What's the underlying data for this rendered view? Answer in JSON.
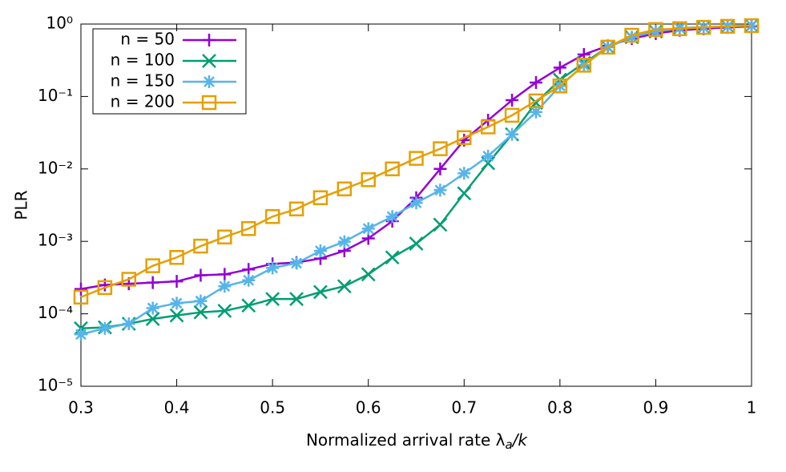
{
  "chart_data": {
    "type": "line",
    "ylabel": "PLR",
    "xlabel": {
      "text": "Normalized arrival rate λ",
      "subscript": "a",
      "suffix": "/k"
    },
    "x": [
      0.3,
      0.325,
      0.35,
      0.375,
      0.4,
      0.425,
      0.45,
      0.475,
      0.5,
      0.525,
      0.55,
      0.575,
      0.6,
      0.625,
      0.65,
      0.675,
      0.7,
      0.725,
      0.75,
      0.775,
      0.8,
      0.825,
      0.85,
      0.875,
      0.9,
      0.925,
      0.95,
      0.975,
      1.0
    ],
    "series": [
      {
        "name": "n = 50",
        "color": "#9400d3",
        "marker": "plus",
        "values": [
          0.00022,
          0.00025,
          0.00026,
          0.00027,
          0.00028,
          0.00034,
          0.00035,
          0.00041,
          0.00049,
          0.00051,
          0.00058,
          0.00074,
          0.0011,
          0.0019,
          0.004,
          0.01,
          0.025,
          0.047,
          0.089,
          0.156,
          0.25,
          0.38,
          0.5,
          0.63,
          0.74,
          0.82,
          0.86,
          0.9,
          0.93
        ]
      },
      {
        "name": "n = 100",
        "color": "#009e73",
        "marker": "cross",
        "values": [
          6.3e-05,
          6.5e-05,
          7.3e-05,
          8.5e-05,
          9.5e-05,
          0.000105,
          0.00011,
          0.00013,
          0.00016,
          0.00016,
          0.0002,
          0.00024,
          0.00035,
          0.0006,
          0.00093,
          0.0017,
          0.0046,
          0.012,
          0.03,
          0.082,
          0.17,
          0.29,
          0.48,
          0.66,
          0.79,
          0.88,
          0.9,
          0.93,
          0.95
        ]
      },
      {
        "name": "n = 150",
        "color": "#56b4e9",
        "marker": "asterisk",
        "values": [
          5.2e-05,
          6.3e-05,
          7.3e-05,
          0.00012,
          0.00014,
          0.00015,
          0.00024,
          0.00029,
          0.00043,
          0.0005,
          0.00074,
          0.00099,
          0.0015,
          0.0022,
          0.0034,
          0.0051,
          0.0087,
          0.015,
          0.03,
          0.061,
          0.14,
          0.27,
          0.48,
          0.66,
          0.79,
          0.88,
          0.9,
          0.93,
          0.95
        ]
      },
      {
        "name": "n = 200",
        "color": "#e69f00",
        "marker": "square",
        "values": [
          0.00017,
          0.00023,
          0.0003,
          0.00046,
          0.0006,
          0.00086,
          0.00115,
          0.0015,
          0.0022,
          0.0028,
          0.004,
          0.0053,
          0.0071,
          0.01,
          0.014,
          0.019,
          0.027,
          0.038,
          0.055,
          0.087,
          0.14,
          0.27,
          0.48,
          0.7,
          0.84,
          0.86,
          0.9,
          0.93,
          0.95
        ]
      }
    ],
    "xlim": [
      0.3,
      1
    ],
    "xticks": [
      0.3,
      0.4,
      0.5,
      0.6,
      0.7,
      0.8,
      0.9,
      1
    ],
    "ylim": [
      1e-05,
      1
    ],
    "yscale": "log",
    "yticks": [
      {
        "value": 1e-05,
        "label": "10⁻⁵"
      },
      {
        "value": 0.0001,
        "label": "10⁻⁴"
      },
      {
        "value": 0.001,
        "label": "10⁻³"
      },
      {
        "value": 0.01,
        "label": "10⁻²"
      },
      {
        "value": 0.1,
        "label": "10⁻¹"
      },
      {
        "value": 1,
        "label": "10⁰"
      }
    ],
    "grid": false,
    "legend": "upper-left"
  }
}
